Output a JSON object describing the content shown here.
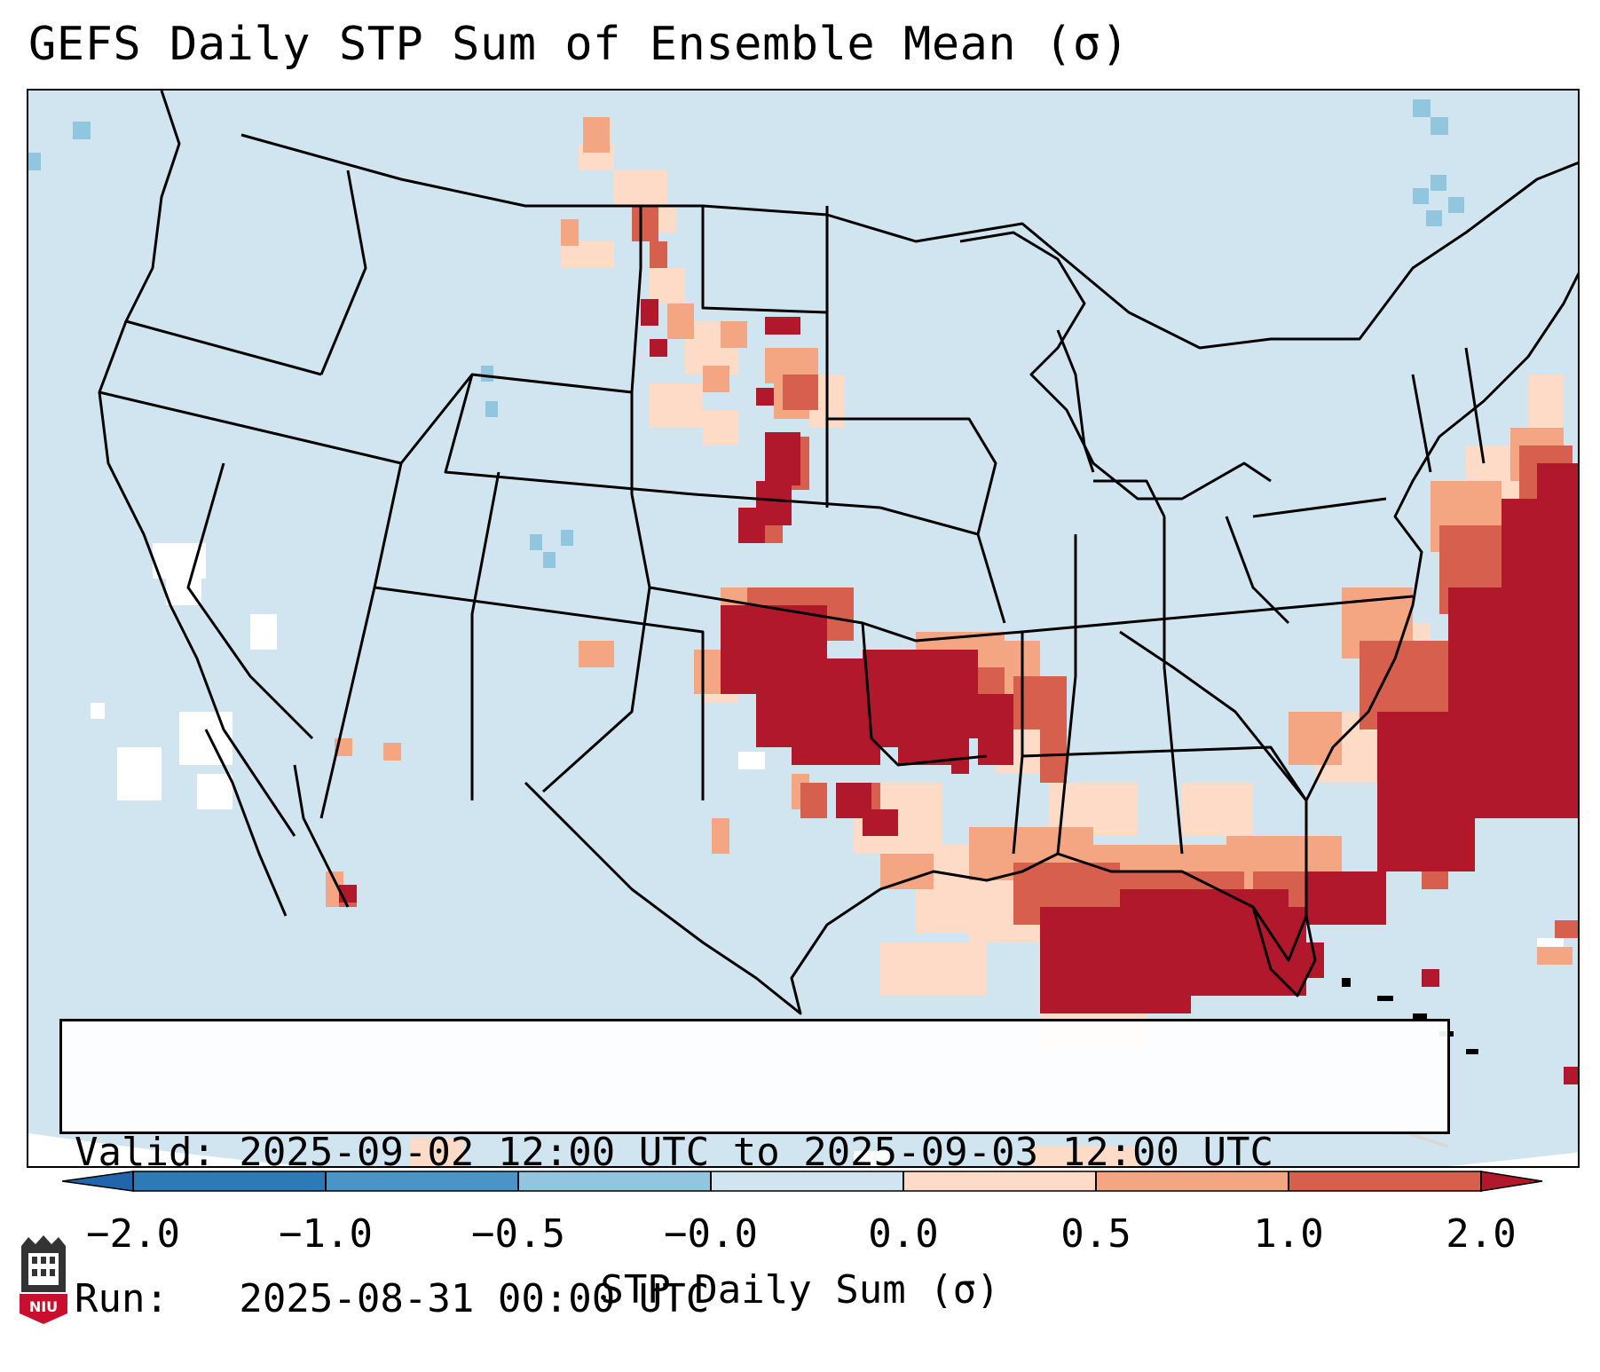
{
  "title": "GEFS Daily STP Sum of Ensemble Mean (σ)",
  "info": {
    "valid_line": "Valid: 2025-09-02 12:00 UTC to 2025-09-03 12:00 UTC",
    "run_line": "Run:   2025-08-31 00:00 UTC"
  },
  "colorbar": {
    "label": "STP Daily Sum (σ)",
    "ticks": [
      "−2.0",
      "−1.0",
      "−0.5",
      "−0.0",
      "0.0",
      "0.5",
      "1.0",
      "2.0"
    ],
    "colors": [
      "#2c7bb6",
      "#4a95c8",
      "#92c5de",
      "#d1e5f0",
      "#fddbc7",
      "#f4a582",
      "#d6604d",
      "#b2182b"
    ],
    "extend_low_color": "#2166ac",
    "extend_high_color": "#b2182b"
  },
  "map": {
    "background_color": "#d1e5f0",
    "land_outline_color": "#000000"
  },
  "logo": {
    "text": "NIU",
    "color": "#c8102e"
  }
}
